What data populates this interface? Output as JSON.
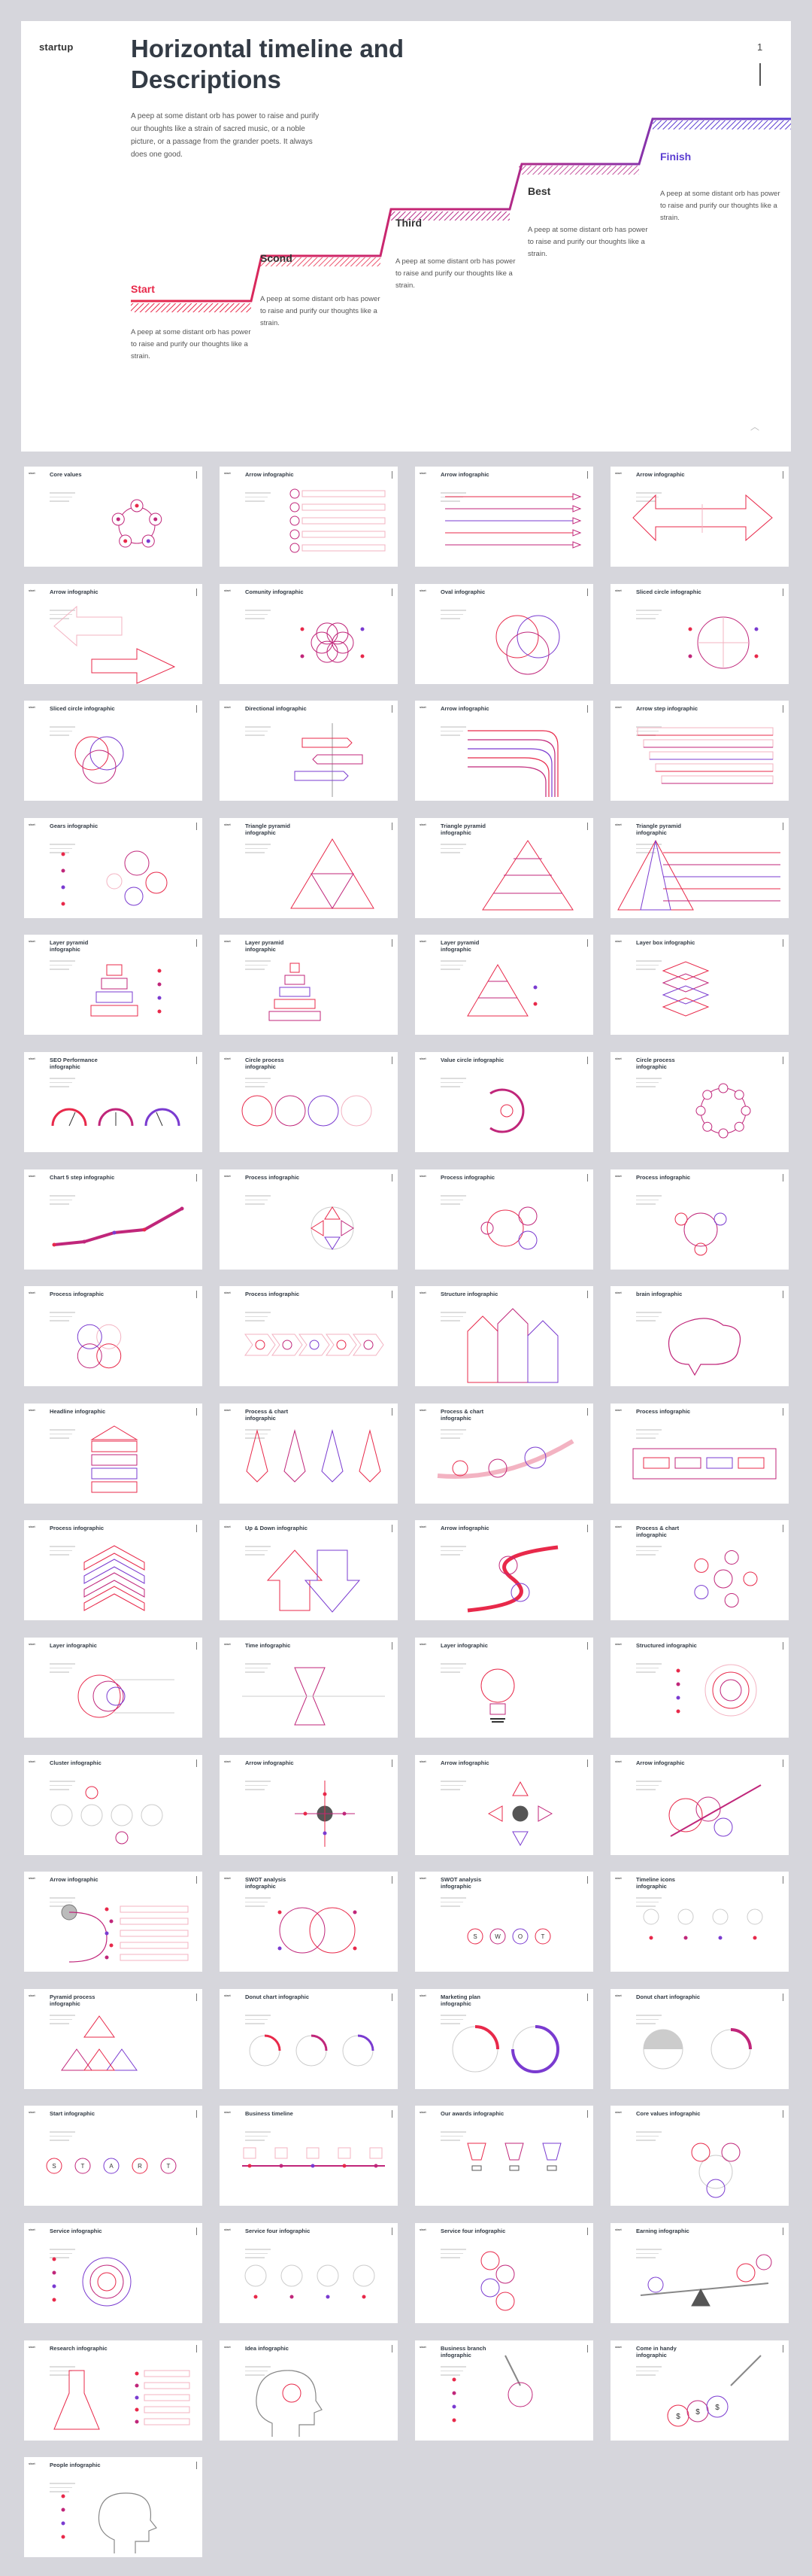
{
  "hero": {
    "logo": "startup",
    "title": "Horizontal timeline and Descriptions",
    "description": "A peep at some distant orb has power to raise and purify our thoughts like a strain of sacred music, or a noble picture, or a passage from the grander poets. It always does one good.",
    "page_number": "1",
    "accent_colors": [
      "#e8294a",
      "#c0267a",
      "#8b35c0",
      "#5b3dd1"
    ],
    "steps": [
      {
        "label": "Start",
        "text": "A peep at some distant orb has power to raise and purify our thoughts like a strain."
      },
      {
        "label": "Scond",
        "text": "A peep at some distant orb has power to raise and purify our thoughts like a strain."
      },
      {
        "label": "Third",
        "text": "A peep at some distant orb has power to raise and purify our thoughts like a strain."
      },
      {
        "label": "Best",
        "text": "A peep at some distant orb has power to raise and purify our thoughts like a strain."
      },
      {
        "label": "Finish",
        "text": "A peep at some distant orb has power to raise and purify our thoughts like a strain."
      }
    ]
  },
  "thumbnail_logo": "start",
  "thumbnails": [
    {
      "title": "Core values",
      "art": "ring5"
    },
    {
      "title": "Arrow infographic",
      "art": "arrowlist"
    },
    {
      "title": "Arrow infographic",
      "art": "arrowsright"
    },
    {
      "title": "Arrow infographic",
      "art": "doublearrow"
    },
    {
      "title": "Arrow infographic",
      "art": "zigzag"
    },
    {
      "title": "Comunity infographic",
      "art": "flower"
    },
    {
      "title": "Oval infographic",
      "art": "venn3"
    },
    {
      "title": "Sliced circle infographic",
      "art": "sliced4"
    },
    {
      "title": "Sliced circle infographic",
      "art": "venn3small"
    },
    {
      "title": "Directional infographic",
      "art": "signpost"
    },
    {
      "title": "Arrow infographic",
      "art": "bentarrows"
    },
    {
      "title": "Arrow step infographic",
      "art": "arrowsteps"
    },
    {
      "title": "Gears infographic",
      "art": "gears"
    },
    {
      "title": "Triangle pyramid infographic",
      "art": "tri4"
    },
    {
      "title": "Triangle pyramid infographic",
      "art": "pyramid"
    },
    {
      "title": "Triangle pyramid infographic",
      "art": "pyramidlines"
    },
    {
      "title": "Layer pyramid infographic",
      "art": "layerpyr"
    },
    {
      "title": "Layer pyramid infographic",
      "art": "layerpyr2"
    },
    {
      "title": "Layer pyramid infographic",
      "art": "layerpyr3"
    },
    {
      "title": "Layer box infographic",
      "art": "layerbox"
    },
    {
      "title": "SEO Performance infographic",
      "art": "gauges"
    },
    {
      "title": "Circle process infographic",
      "art": "circles4"
    },
    {
      "title": "Value circle infographic",
      "art": "cycle"
    },
    {
      "title": "Circle process infographic",
      "art": "ringdots"
    },
    {
      "title": "Chart 5 step infographic",
      "art": "linechart"
    },
    {
      "title": "Process infographic",
      "art": "crossarrows"
    },
    {
      "title": "Process infographic",
      "art": "ring3"
    },
    {
      "title": "Process infographic",
      "art": "ring3b"
    },
    {
      "title": "Process infographic",
      "art": "clover"
    },
    {
      "title": "Process infographic",
      "art": "chevrons"
    },
    {
      "title": "Structure infographic",
      "art": "pillars"
    },
    {
      "title": "brain infographic",
      "art": "brain"
    },
    {
      "title": "Headline infographic",
      "art": "stackhouse"
    },
    {
      "title": "Process & chart infographic",
      "art": "kites"
    },
    {
      "title": "Process & chart infographic",
      "art": "bubblesarrow"
    },
    {
      "title": "Process infographic",
      "art": "pill"
    },
    {
      "title": "Process infographic",
      "art": "upchevrons"
    },
    {
      "title": "Up & Down infographic",
      "art": "updown"
    },
    {
      "title": "Arrow infographic",
      "art": "s-arrow"
    },
    {
      "title": "Process & chart infographic",
      "art": "hub"
    },
    {
      "title": "Layer infographic",
      "art": "layers"
    },
    {
      "title": "Time infographic",
      "art": "hourglass"
    },
    {
      "title": "Layer infographic",
      "art": "bulb"
    },
    {
      "title": "Structured infographic",
      "art": "concentric"
    },
    {
      "title": "Cluster infographic",
      "art": "cluster"
    },
    {
      "title": "Arrow infographic",
      "art": "crossdial"
    },
    {
      "title": "Arrow infographic",
      "art": "fourarrows"
    },
    {
      "title": "Arrow infographic",
      "art": "arrowbubbles"
    },
    {
      "title": "Arrow infographic",
      "art": "spiral"
    },
    {
      "title": "SWOT analysis infographic",
      "art": "swotbig"
    },
    {
      "title": "SWOT analysis infographic",
      "art": "swot"
    },
    {
      "title": "Timeline icons infographic",
      "art": "timeicons"
    },
    {
      "title": "Pyramid process infographic",
      "art": "tripyr"
    },
    {
      "title": "Donut chart infographic",
      "art": "donuts3"
    },
    {
      "title": "Marketing plan infographic",
      "art": "bigdonuts"
    },
    {
      "title": "Donut chart infographic",
      "art": "donuthalf"
    },
    {
      "title": "Start infographic",
      "art": "start"
    },
    {
      "title": "Business timeline",
      "art": "timeline"
    },
    {
      "title": "Our awards infographic",
      "art": "trophies"
    },
    {
      "title": "Core values infographic",
      "art": "triad"
    },
    {
      "title": "Service infographic",
      "art": "service"
    },
    {
      "title": "Service four infographic",
      "art": "four"
    },
    {
      "title": "Service four infographic",
      "art": "fourvert"
    },
    {
      "title": "Earning infographic",
      "art": "seesaw"
    },
    {
      "title": "Research infographic",
      "art": "flask"
    },
    {
      "title": "Idea infographic",
      "art": "head"
    },
    {
      "title": "Business branch infographic",
      "art": "hand"
    },
    {
      "title": "Come in handy infographic",
      "art": "bags"
    },
    {
      "title": "People infographic",
      "art": "people"
    }
  ]
}
